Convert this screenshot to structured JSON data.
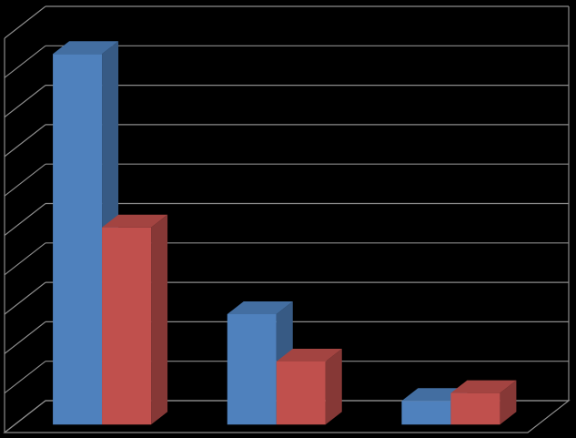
{
  "chart_data": {
    "type": "bar3d",
    "categories": [
      null,
      null,
      null
    ],
    "series": [
      {
        "color": "#4f81bd",
        "values": [
          9.4,
          2.8,
          0.6
        ]
      },
      {
        "color": "#c0504d",
        "values": [
          5.0,
          1.6,
          0.8
        ]
      }
    ],
    "ylim": [
      0,
      10
    ],
    "yticks": [
      0,
      1,
      2,
      3,
      4,
      5,
      6,
      7,
      8,
      9,
      10
    ],
    "grid": true
  }
}
